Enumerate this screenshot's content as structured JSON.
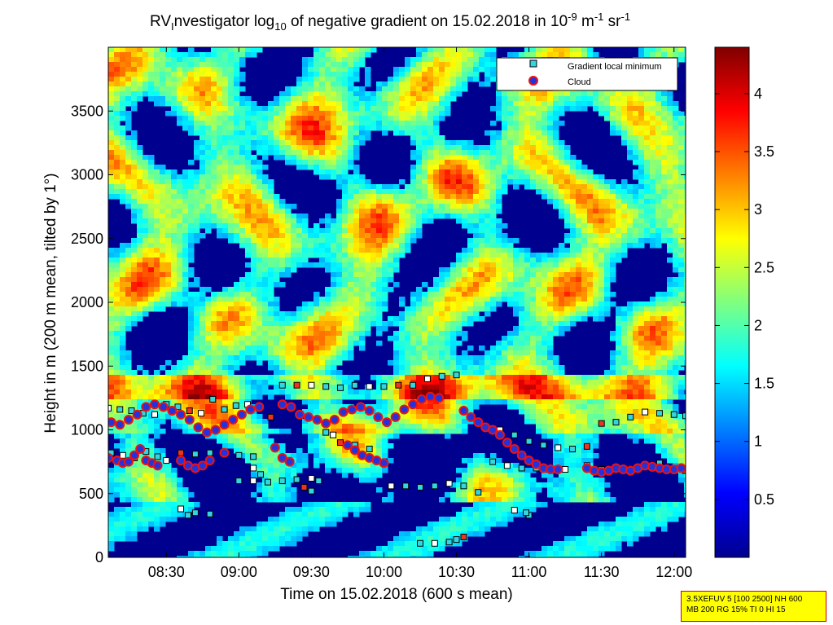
{
  "chart_data": {
    "type": "heatmap",
    "title": {
      "t1": "RV",
      "t1sub": "I",
      "t2": "nvestigator log",
      "t2sub": "10",
      "t3": " of negative gradient on 15.02.2018 in 10",
      "t3sup": "-9",
      "t4": " m",
      "t4sup": "-1",
      "t5": " sr",
      "t5sup": "-1"
    },
    "xlabel": "Time on 15.02.2018 (600 s mean)",
    "ylabel": "Height in m (200 m mean, tilted by 1°)",
    "x_ticks": [
      {
        "hour": 8.5,
        "label": "08:30"
      },
      {
        "hour": 9.0,
        "label": "09:00"
      },
      {
        "hour": 9.5,
        "label": "09:30"
      },
      {
        "hour": 10.0,
        "label": "10:00"
      },
      {
        "hour": 10.5,
        "label": "10:30"
      },
      {
        "hour": 11.0,
        "label": "11:00"
      },
      {
        "hour": 11.5,
        "label": "11:30"
      },
      {
        "hour": 12.0,
        "label": "12:00"
      }
    ],
    "y_ticks": [
      0,
      500,
      1000,
      1500,
      2000,
      2500,
      3000,
      3500
    ],
    "xlim_hours": [
      8.1,
      12.08
    ],
    "ylim": [
      0,
      4000
    ],
    "colorbar": {
      "range": [
        0,
        4.4
      ],
      "ticks": [
        "0.5",
        "1",
        "1.5",
        "2",
        "2.5",
        "3",
        "3.5",
        "4"
      ],
      "colormap": "jet"
    },
    "legend": {
      "position": "top-right",
      "entries": [
        {
          "name": "Gradient local minimum",
          "marker": "square",
          "face": "#33d6e0",
          "edge": "#000000"
        },
        {
          "name": "Cloud",
          "marker": "circle",
          "face": "#2233dd",
          "edge": "#ee1111"
        }
      ]
    },
    "series": [
      {
        "name": "Gradient local minimum",
        "points": [
          [
            8.1,
            1170
          ],
          [
            8.18,
            1160
          ],
          [
            8.26,
            1150
          ],
          [
            8.34,
            1130
          ],
          [
            8.42,
            1120
          ],
          [
            8.5,
            1200
          ],
          [
            8.58,
            1180
          ],
          [
            8.66,
            1150
          ],
          [
            8.74,
            1130
          ],
          [
            8.82,
            1240
          ],
          [
            8.9,
            1160
          ],
          [
            8.98,
            1190
          ],
          [
            9.06,
            1200
          ],
          [
            9.14,
            1170
          ],
          [
            9.22,
            1100
          ],
          [
            8.12,
            820
          ],
          [
            8.2,
            800
          ],
          [
            8.28,
            780
          ],
          [
            8.36,
            830
          ],
          [
            8.44,
            790
          ],
          [
            8.5,
            760
          ],
          [
            8.6,
            820
          ],
          [
            8.7,
            810
          ],
          [
            8.8,
            820
          ],
          [
            8.9,
            810
          ],
          [
            9.0,
            800
          ],
          [
            9.1,
            790
          ],
          [
            9.0,
            600
          ],
          [
            9.1,
            600
          ],
          [
            9.2,
            590
          ],
          [
            9.3,
            600
          ],
          [
            9.4,
            610
          ],
          [
            9.5,
            620
          ],
          [
            9.55,
            600
          ],
          [
            9.3,
            1350
          ],
          [
            9.4,
            1350
          ],
          [
            9.5,
            1350
          ],
          [
            9.6,
            1340
          ],
          [
            9.7,
            1330
          ],
          [
            9.8,
            1350
          ],
          [
            9.9,
            1340
          ],
          [
            10.0,
            1340
          ],
          [
            10.1,
            1350
          ],
          [
            10.2,
            1350
          ],
          [
            10.3,
            1400
          ],
          [
            10.4,
            1420
          ],
          [
            10.5,
            1430
          ],
          [
            9.6,
            980
          ],
          [
            9.65,
            960
          ],
          [
            9.7,
            900
          ],
          [
            9.8,
            880
          ],
          [
            9.9,
            850
          ],
          [
            10.05,
            560
          ],
          [
            10.15,
            560
          ],
          [
            10.25,
            550
          ],
          [
            10.35,
            560
          ],
          [
            10.45,
            580
          ],
          [
            10.55,
            560
          ],
          [
            10.65,
            510
          ],
          [
            10.25,
            110
          ],
          [
            10.35,
            110
          ],
          [
            10.45,
            120
          ],
          [
            10.5,
            140
          ],
          [
            10.55,
            160
          ],
          [
            10.8,
            1000
          ],
          [
            10.9,
            960
          ],
          [
            11.0,
            910
          ],
          [
            11.1,
            880
          ],
          [
            11.2,
            860
          ],
          [
            11.3,
            850
          ],
          [
            11.4,
            870
          ],
          [
            10.75,
            750
          ],
          [
            10.85,
            720
          ],
          [
            10.95,
            700
          ],
          [
            11.05,
            700
          ],
          [
            11.15,
            690
          ],
          [
            11.25,
            690
          ],
          [
            11.5,
            1050
          ],
          [
            11.6,
            1060
          ],
          [
            11.7,
            1100
          ],
          [
            11.8,
            1140
          ],
          [
            11.9,
            1130
          ],
          [
            12.0,
            1120
          ],
          [
            12.08,
            1110
          ],
          [
            11.4,
            720
          ],
          [
            11.5,
            690
          ],
          [
            11.6,
            700
          ],
          [
            11.7,
            690
          ],
          [
            11.8,
            720
          ],
          [
            11.9,
            740
          ],
          [
            12.0,
            700
          ],
          [
            12.08,
            680
          ],
          [
            8.6,
            380
          ],
          [
            8.65,
            330
          ],
          [
            8.7,
            350
          ],
          [
            8.8,
            340
          ],
          [
            9.1,
            700
          ],
          [
            9.15,
            650
          ],
          [
            9.45,
            550
          ],
          [
            9.5,
            520
          ],
          [
            10.9,
            370
          ],
          [
            11.0,
            330
          ],
          [
            10.98,
            350
          ]
        ]
      },
      {
        "name": "Cloud",
        "points": [
          [
            8.1,
            780
          ],
          [
            8.16,
            760
          ],
          [
            8.2,
            740
          ],
          [
            8.24,
            750
          ],
          [
            8.28,
            800
          ],
          [
            8.32,
            850
          ],
          [
            8.36,
            760
          ],
          [
            8.4,
            740
          ],
          [
            8.44,
            720
          ],
          [
            8.12,
            1060
          ],
          [
            8.18,
            1040
          ],
          [
            8.24,
            1080
          ],
          [
            8.3,
            1120
          ],
          [
            8.36,
            1180
          ],
          [
            8.42,
            1200
          ],
          [
            8.48,
            1180
          ],
          [
            8.54,
            1150
          ],
          [
            8.6,
            1120
          ],
          [
            8.66,
            1080
          ],
          [
            8.72,
            1020
          ],
          [
            8.78,
            980
          ],
          [
            8.84,
            1000
          ],
          [
            8.9,
            1040
          ],
          [
            8.96,
            1080
          ],
          [
            9.02,
            1120
          ],
          [
            9.08,
            1160
          ],
          [
            9.14,
            1180
          ],
          [
            8.6,
            760
          ],
          [
            8.65,
            720
          ],
          [
            8.7,
            700
          ],
          [
            8.75,
            720
          ],
          [
            8.8,
            760
          ],
          [
            8.9,
            820
          ],
          [
            9.3,
            1200
          ],
          [
            9.36,
            1180
          ],
          [
            9.42,
            1120
          ],
          [
            9.48,
            1100
          ],
          [
            9.54,
            1080
          ],
          [
            9.6,
            1050
          ],
          [
            9.66,
            1080
          ],
          [
            9.72,
            1140
          ],
          [
            9.78,
            1160
          ],
          [
            9.84,
            1180
          ],
          [
            9.9,
            1150
          ],
          [
            9.96,
            1100
          ],
          [
            10.02,
            1060
          ],
          [
            10.08,
            1100
          ],
          [
            10.14,
            1160
          ],
          [
            10.2,
            1200
          ],
          [
            10.26,
            1240
          ],
          [
            10.32,
            1260
          ],
          [
            10.38,
            1250
          ],
          [
            9.25,
            860
          ],
          [
            9.3,
            780
          ],
          [
            9.35,
            750
          ],
          [
            9.75,
            880
          ],
          [
            9.8,
            840
          ],
          [
            9.85,
            800
          ],
          [
            9.9,
            780
          ],
          [
            9.95,
            760
          ],
          [
            10.0,
            740
          ],
          [
            10.55,
            1150
          ],
          [
            10.6,
            1100
          ],
          [
            10.65,
            1060
          ],
          [
            10.7,
            1020
          ],
          [
            10.75,
            1000
          ],
          [
            10.8,
            960
          ],
          [
            10.85,
            900
          ],
          [
            10.9,
            850
          ],
          [
            10.95,
            800
          ],
          [
            11.0,
            760
          ],
          [
            11.05,
            730
          ],
          [
            11.1,
            700
          ],
          [
            11.15,
            690
          ],
          [
            11.2,
            690
          ],
          [
            11.4,
            700
          ],
          [
            11.45,
            680
          ],
          [
            11.5,
            670
          ],
          [
            11.55,
            680
          ],
          [
            11.6,
            700
          ],
          [
            11.65,
            690
          ],
          [
            11.7,
            680
          ],
          [
            11.75,
            700
          ],
          [
            11.8,
            720
          ],
          [
            11.85,
            710
          ],
          [
            11.9,
            700
          ],
          [
            11.95,
            690
          ],
          [
            12.0,
            690
          ],
          [
            12.05,
            700
          ]
        ]
      }
    ]
  },
  "info_box": {
    "line1": "3.5XEFUV 5 [100 2500] NH 600",
    "line2": "MB 200 RG 15% TI 0 HI 15"
  }
}
